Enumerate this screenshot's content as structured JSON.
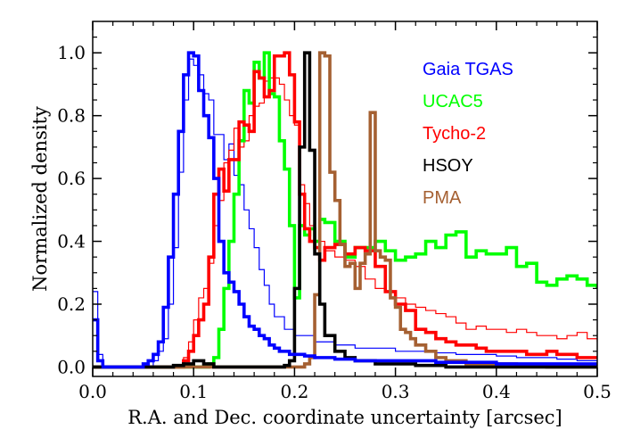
{
  "chart_data": {
    "type": "line",
    "title": "",
    "xlabel": "R.A. and Dec. coordinate uncertainty [arcsec]",
    "ylabel": "Normalized density",
    "xlim": [
      0.0,
      0.5
    ],
    "ylim": [
      -0.03,
      1.1
    ],
    "x_ticks": [
      0.0,
      0.1,
      0.2,
      0.3,
      0.4,
      0.5
    ],
    "x_tick_labels": [
      "0.0",
      "0.1",
      "0.2",
      "0.3",
      "0.4",
      "0.5"
    ],
    "y_ticks": [
      0.0,
      0.2,
      0.4,
      0.6,
      0.8,
      1.0
    ],
    "y_tick_labels": [
      "0.0",
      "0.2",
      "0.4",
      "0.6",
      "0.8",
      "1.0"
    ],
    "grid": false,
    "legend_position": "top-right",
    "series": [
      {
        "name": "Gaia TGAS",
        "color": "#0000ff",
        "weight": "thick",
        "x": [
          0.0,
          0.005,
          0.01,
          0.015,
          0.02,
          0.025,
          0.03,
          0.035,
          0.04,
          0.045,
          0.05,
          0.055,
          0.06,
          0.065,
          0.07,
          0.075,
          0.08,
          0.085,
          0.09,
          0.095,
          0.1,
          0.105,
          0.11,
          0.115,
          0.12,
          0.125,
          0.13,
          0.135,
          0.14,
          0.145,
          0.15,
          0.155,
          0.16,
          0.165,
          0.17,
          0.175,
          0.18,
          0.185,
          0.19,
          0.195,
          0.2,
          0.21,
          0.22,
          0.23,
          0.24,
          0.25,
          0.26,
          0.27,
          0.28,
          0.29,
          0.3,
          0.32,
          0.34,
          0.36,
          0.38,
          0.4,
          0.42,
          0.44,
          0.46,
          0.48,
          0.5
        ],
        "y": [
          0.15,
          0.02,
          0.0,
          0.0,
          0.0,
          0.0,
          0.0,
          0.0,
          0.0,
          0.0,
          0.01,
          0.02,
          0.04,
          0.08,
          0.19,
          0.35,
          0.55,
          0.75,
          0.93,
          1.0,
          0.99,
          0.88,
          0.8,
          0.73,
          0.6,
          0.4,
          0.3,
          0.27,
          0.24,
          0.2,
          0.16,
          0.13,
          0.12,
          0.1,
          0.09,
          0.07,
          0.06,
          0.05,
          0.05,
          0.04,
          0.04,
          0.035,
          0.03,
          0.03,
          0.025,
          0.025,
          0.02,
          0.02,
          0.02,
          0.02,
          0.02,
          0.02,
          0.015,
          0.015,
          0.015,
          0.01,
          0.01,
          0.01,
          0.01,
          0.01,
          0.01
        ]
      },
      {
        "name": "UCAC5",
        "color": "#00ff00",
        "weight": "thick",
        "x": [
          0.0,
          0.02,
          0.04,
          0.06,
          0.08,
          0.1,
          0.105,
          0.11,
          0.115,
          0.12,
          0.125,
          0.13,
          0.135,
          0.14,
          0.145,
          0.15,
          0.155,
          0.16,
          0.165,
          0.17,
          0.175,
          0.18,
          0.185,
          0.19,
          0.195,
          0.2,
          0.205,
          0.21,
          0.215,
          0.22,
          0.225,
          0.23,
          0.24,
          0.25,
          0.26,
          0.27,
          0.28,
          0.29,
          0.3,
          0.31,
          0.32,
          0.33,
          0.34,
          0.35,
          0.36,
          0.37,
          0.38,
          0.39,
          0.4,
          0.41,
          0.42,
          0.43,
          0.44,
          0.45,
          0.46,
          0.47,
          0.48,
          0.49,
          0.5
        ],
        "y": [
          0.0,
          0.0,
          0.0,
          0.0,
          0.0,
          0.0,
          0.0,
          0.0,
          0.01,
          0.03,
          0.12,
          0.25,
          0.4,
          0.55,
          0.72,
          0.88,
          0.84,
          0.97,
          0.92,
          1.0,
          0.87,
          0.86,
          0.72,
          0.63,
          0.45,
          0.22,
          0.45,
          0.42,
          0.44,
          0.4,
          0.47,
          0.46,
          0.4,
          0.35,
          0.38,
          0.38,
          0.4,
          0.37,
          0.34,
          0.35,
          0.36,
          0.4,
          0.38,
          0.42,
          0.43,
          0.35,
          0.37,
          0.36,
          0.36,
          0.38,
          0.32,
          0.33,
          0.27,
          0.26,
          0.28,
          0.29,
          0.28,
          0.26,
          0.25
        ]
      },
      {
        "name": "Tycho-2",
        "color": "#ff0000",
        "weight": "thick",
        "x": [
          0.0,
          0.02,
          0.04,
          0.06,
          0.07,
          0.075,
          0.08,
          0.085,
          0.09,
          0.095,
          0.1,
          0.105,
          0.11,
          0.115,
          0.12,
          0.125,
          0.13,
          0.135,
          0.14,
          0.145,
          0.15,
          0.155,
          0.16,
          0.165,
          0.17,
          0.175,
          0.18,
          0.185,
          0.19,
          0.195,
          0.2,
          0.205,
          0.21,
          0.215,
          0.22,
          0.225,
          0.23,
          0.24,
          0.25,
          0.26,
          0.27,
          0.28,
          0.29,
          0.3,
          0.31,
          0.32,
          0.33,
          0.34,
          0.35,
          0.36,
          0.37,
          0.38,
          0.39,
          0.4,
          0.41,
          0.42,
          0.43,
          0.44,
          0.45,
          0.46,
          0.47,
          0.48,
          0.49,
          0.5
        ],
        "y": [
          0.0,
          0.0,
          0.0,
          0.0,
          0.0,
          0.0,
          0.0,
          0.0,
          0.02,
          0.05,
          0.1,
          0.15,
          0.2,
          0.35,
          0.55,
          0.63,
          0.56,
          0.66,
          0.66,
          0.78,
          0.77,
          0.75,
          0.94,
          0.92,
          0.86,
          0.88,
          0.99,
          0.99,
          1.0,
          0.93,
          0.78,
          0.55,
          0.44,
          0.4,
          0.38,
          0.34,
          0.38,
          0.39,
          0.36,
          0.38,
          0.37,
          0.32,
          0.24,
          0.2,
          0.18,
          0.12,
          0.11,
          0.09,
          0.08,
          0.07,
          0.07,
          0.06,
          0.05,
          0.05,
          0.05,
          0.05,
          0.04,
          0.04,
          0.05,
          0.04,
          0.04,
          0.03,
          0.03,
          0.03
        ]
      },
      {
        "name": "HSOY",
        "color": "#000000",
        "weight": "thick",
        "x": [
          0.0,
          0.02,
          0.04,
          0.06,
          0.08,
          0.09,
          0.1,
          0.11,
          0.12,
          0.14,
          0.16,
          0.18,
          0.19,
          0.195,
          0.2,
          0.205,
          0.21,
          0.215,
          0.22,
          0.225,
          0.23,
          0.24,
          0.25,
          0.26,
          0.28,
          0.3,
          0.32,
          0.35,
          0.4,
          0.45,
          0.5
        ],
        "y": [
          0.0,
          0.0,
          0.0,
          0.0,
          0.005,
          0.01,
          0.02,
          0.01,
          0.0,
          0.0,
          0.0,
          0.0,
          0.005,
          0.02,
          0.25,
          0.7,
          1.0,
          0.69,
          0.36,
          0.2,
          0.1,
          0.05,
          0.03,
          0.02,
          0.01,
          0.01,
          0.005,
          0.0,
          0.0,
          0.0,
          0.0
        ]
      },
      {
        "name": "PMA",
        "color": "#a56032",
        "weight": "thick",
        "x": [
          0.0,
          0.05,
          0.1,
          0.15,
          0.2,
          0.21,
          0.215,
          0.22,
          0.225,
          0.23,
          0.235,
          0.24,
          0.245,
          0.25,
          0.255,
          0.26,
          0.265,
          0.27,
          0.275,
          0.28,
          0.285,
          0.29,
          0.295,
          0.3,
          0.305,
          0.31,
          0.315,
          0.32,
          0.33,
          0.34,
          0.35,
          0.36,
          0.37,
          0.38,
          0.39,
          0.4,
          0.42,
          0.45,
          0.5
        ],
        "y": [
          0.0,
          0.0,
          0.0,
          0.0,
          0.0,
          0.01,
          0.03,
          0.23,
          1.0,
          0.99,
          0.62,
          0.53,
          0.39,
          0.32,
          0.33,
          0.25,
          0.33,
          0.36,
          0.81,
          0.37,
          0.35,
          0.34,
          0.22,
          0.19,
          0.12,
          0.11,
          0.09,
          0.07,
          0.05,
          0.03,
          0.02,
          0.02,
          0.01,
          0.01,
          0.01,
          0.01,
          0.005,
          0.0,
          0.0
        ]
      },
      {
        "name": "",
        "color": "#0000ff",
        "weight": "thin",
        "x": [
          0.0,
          0.005,
          0.01,
          0.02,
          0.04,
          0.06,
          0.065,
          0.07,
          0.075,
          0.08,
          0.085,
          0.09,
          0.095,
          0.1,
          0.105,
          0.11,
          0.115,
          0.12,
          0.125,
          0.13,
          0.135,
          0.14,
          0.145,
          0.15,
          0.155,
          0.16,
          0.165,
          0.17,
          0.175,
          0.18,
          0.19,
          0.2,
          0.22,
          0.24,
          0.26,
          0.28,
          0.3,
          0.32,
          0.34,
          0.36,
          0.38,
          0.4,
          0.42,
          0.44,
          0.46,
          0.48,
          0.5
        ],
        "y": [
          0.24,
          0.04,
          0.0,
          0.0,
          0.0,
          0.02,
          0.05,
          0.09,
          0.2,
          0.38,
          0.62,
          0.85,
          0.98,
          0.96,
          0.93,
          0.87,
          0.85,
          0.74,
          0.74,
          0.66,
          0.71,
          0.61,
          0.58,
          0.5,
          0.44,
          0.38,
          0.31,
          0.26,
          0.2,
          0.16,
          0.12,
          0.1,
          0.08,
          0.07,
          0.06,
          0.06,
          0.05,
          0.05,
          0.045,
          0.04,
          0.04,
          0.035,
          0.03,
          0.03,
          0.025,
          0.02,
          0.02
        ]
      },
      {
        "name": "",
        "color": "#ff0000",
        "weight": "thin",
        "x": [
          0.0,
          0.02,
          0.04,
          0.06,
          0.08,
          0.09,
          0.095,
          0.1,
          0.105,
          0.11,
          0.115,
          0.12,
          0.125,
          0.13,
          0.135,
          0.14,
          0.145,
          0.15,
          0.155,
          0.16,
          0.165,
          0.17,
          0.175,
          0.18,
          0.185,
          0.19,
          0.195,
          0.2,
          0.205,
          0.21,
          0.215,
          0.22,
          0.23,
          0.24,
          0.25,
          0.26,
          0.27,
          0.28,
          0.29,
          0.3,
          0.31,
          0.32,
          0.33,
          0.34,
          0.35,
          0.36,
          0.37,
          0.38,
          0.39,
          0.4,
          0.41,
          0.42,
          0.43,
          0.44,
          0.45,
          0.46,
          0.47,
          0.48,
          0.49,
          0.5
        ],
        "y": [
          0.0,
          0.0,
          0.0,
          0.0,
          0.0,
          0.03,
          0.08,
          0.15,
          0.22,
          0.25,
          0.33,
          0.45,
          0.53,
          0.65,
          0.69,
          0.76,
          0.7,
          0.72,
          0.8,
          0.83,
          0.84,
          0.91,
          0.92,
          0.92,
          0.9,
          0.85,
          0.8,
          0.77,
          0.58,
          0.52,
          0.45,
          0.4,
          0.37,
          0.35,
          0.34,
          0.32,
          0.28,
          0.25,
          0.24,
          0.22,
          0.2,
          0.19,
          0.18,
          0.17,
          0.16,
          0.14,
          0.12,
          0.13,
          0.12,
          0.12,
          0.11,
          0.12,
          0.11,
          0.1,
          0.1,
          0.09,
          0.1,
          0.11,
          0.09,
          0.08
        ]
      }
    ]
  }
}
